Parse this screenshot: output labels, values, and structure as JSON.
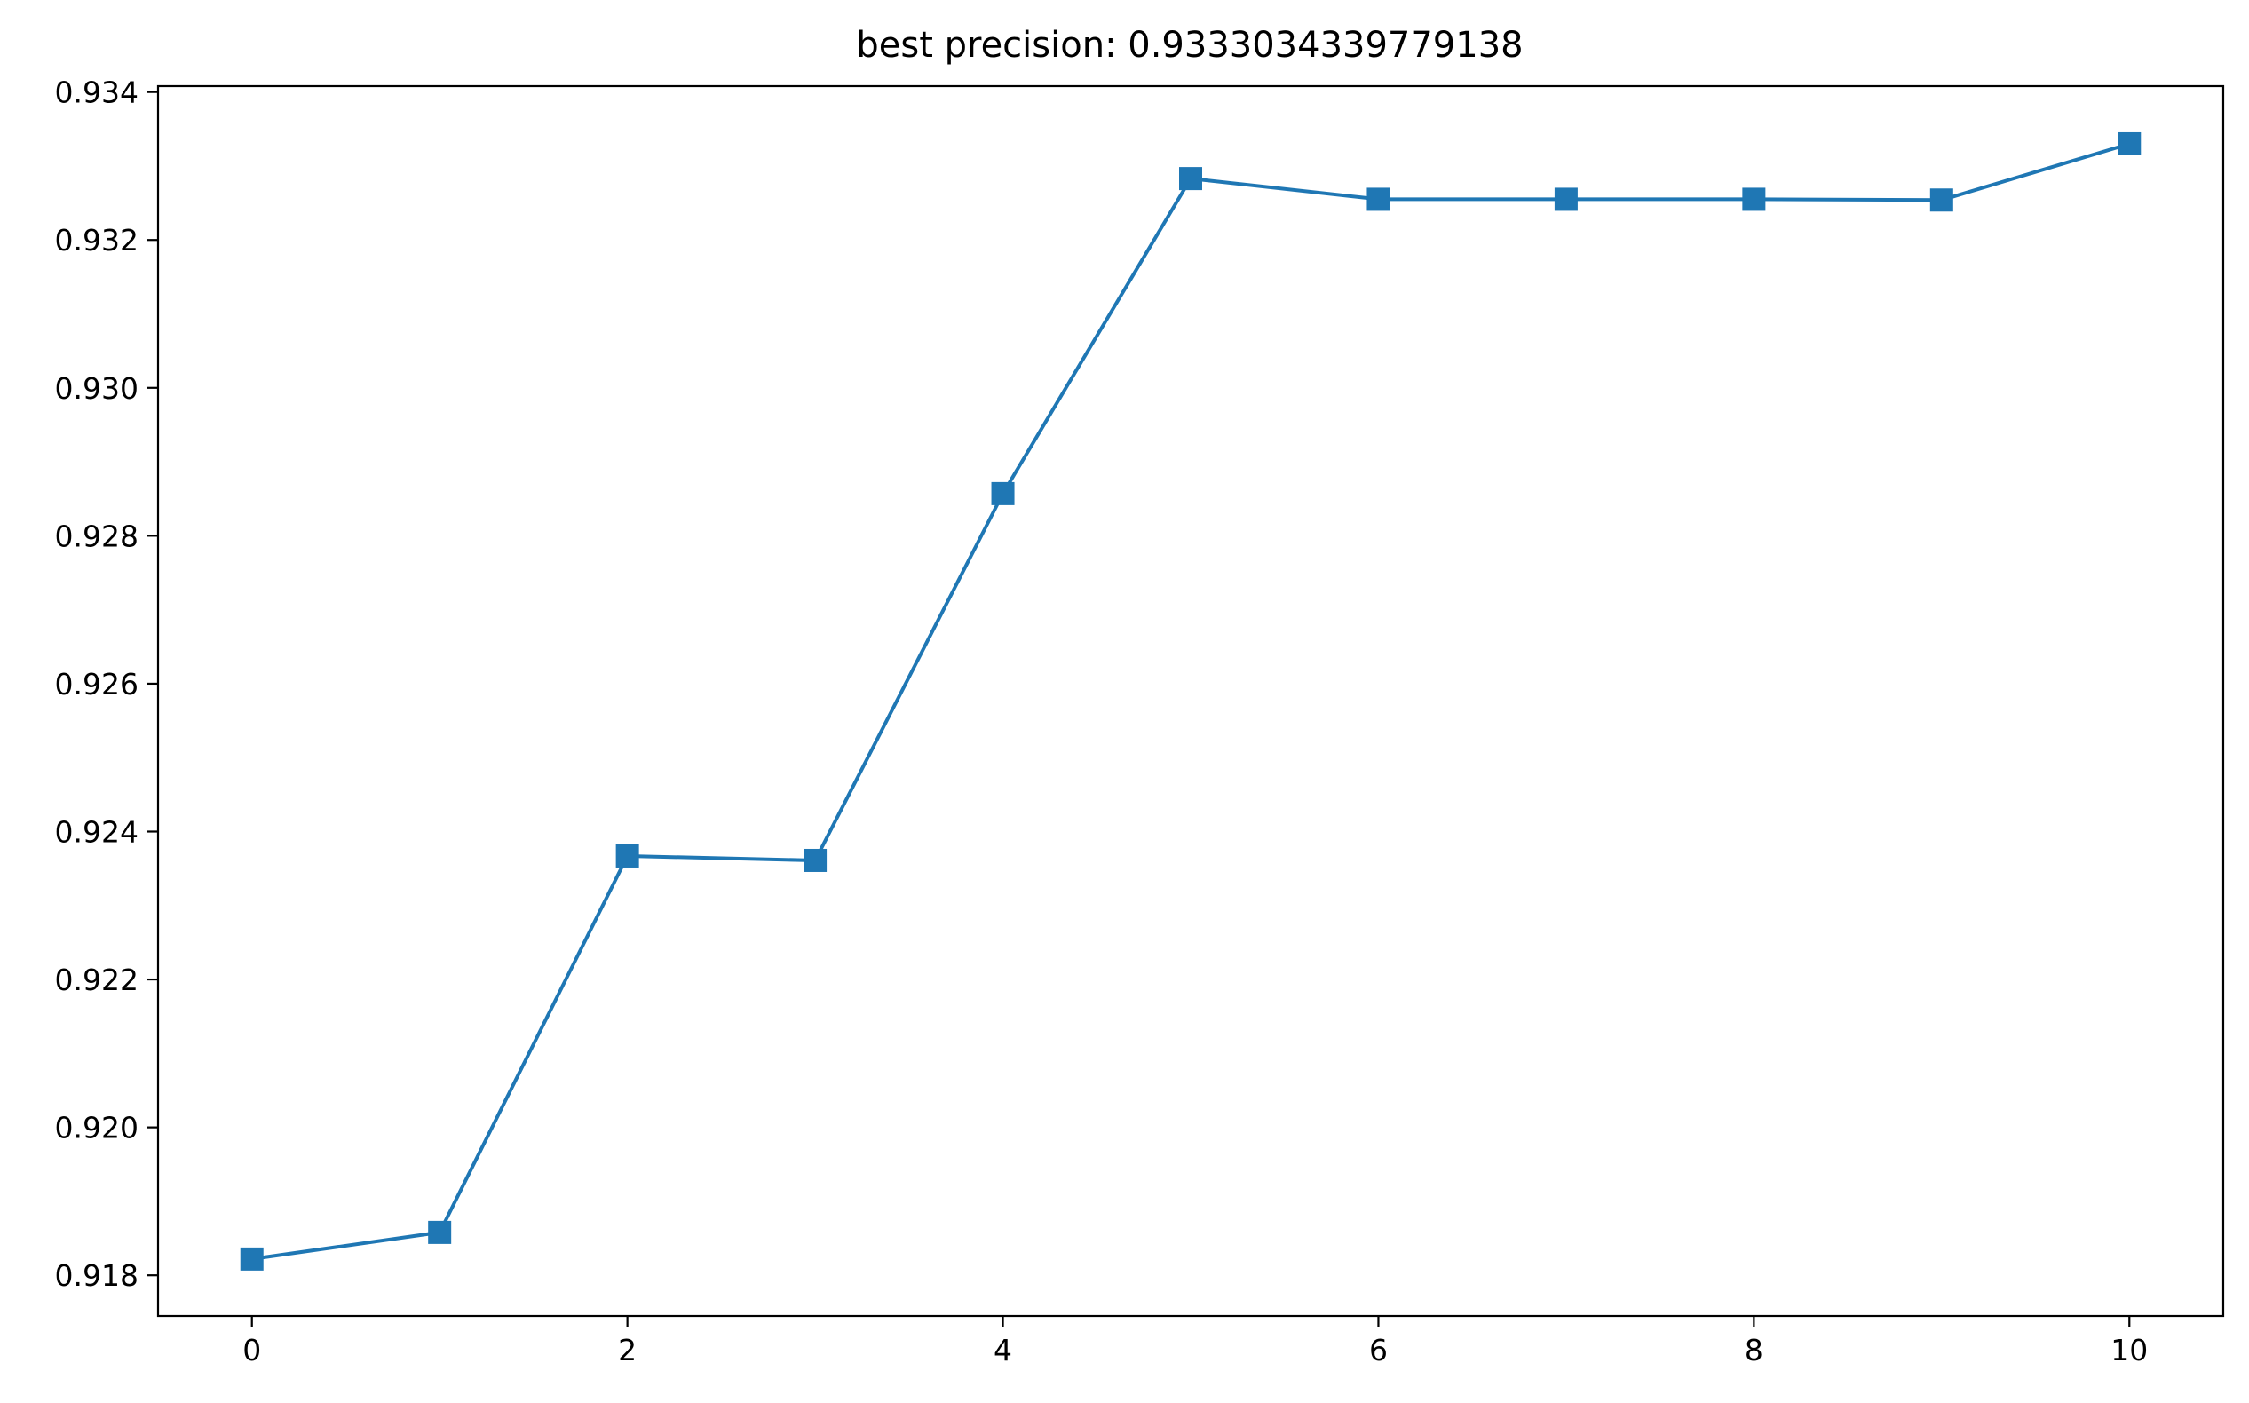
{
  "chart_data": {
    "type": "line",
    "title": "best precision: 0.9333034339779138",
    "xlabel": "",
    "ylabel": "",
    "xlim": [
      -0.5,
      10.5
    ],
    "ylim": [
      0.91745,
      0.93408
    ],
    "x_ticks": [
      0,
      2,
      4,
      6,
      8,
      10
    ],
    "x_tick_labels": [
      "0",
      "2",
      "4",
      "6",
      "8",
      "10"
    ],
    "y_ticks": [
      0.918,
      0.92,
      0.922,
      0.924,
      0.926,
      0.928,
      0.93,
      0.932,
      0.934
    ],
    "y_tick_labels": [
      "0.918",
      "0.920",
      "0.922",
      "0.924",
      "0.926",
      "0.928",
      "0.930",
      "0.932",
      "0.934"
    ],
    "grid": false,
    "series": [
      {
        "color": "#1f77b4",
        "marker": "square",
        "x": [
          0,
          1,
          2,
          3,
          4,
          5,
          6,
          7,
          8,
          9,
          10
        ],
        "y": [
          0.91822,
          0.91858,
          0.92367,
          0.92361,
          0.92857,
          0.93283,
          0.93255,
          0.93255,
          0.93255,
          0.93254,
          0.9333
        ]
      }
    ]
  }
}
